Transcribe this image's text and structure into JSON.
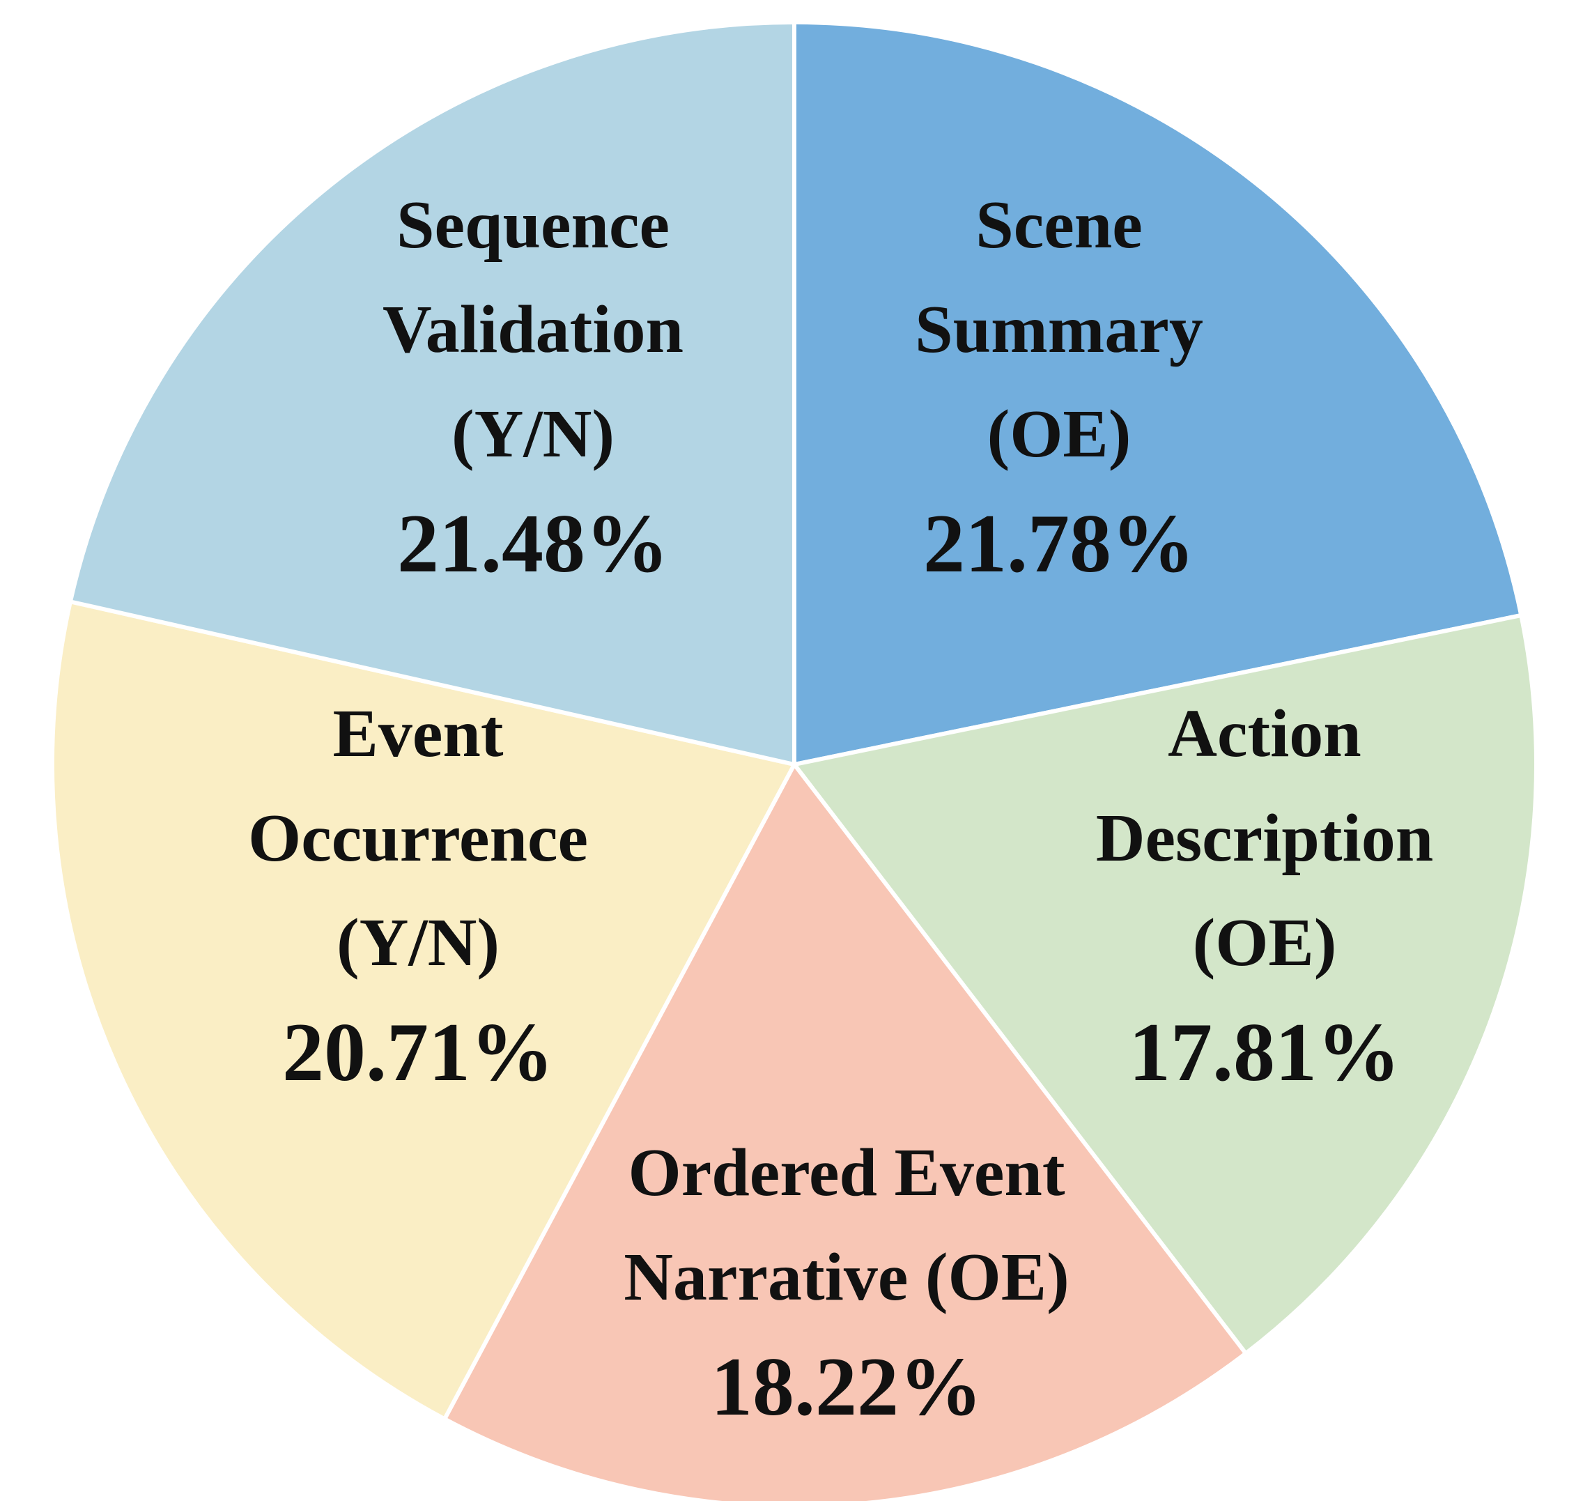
{
  "chart_data": {
    "type": "pie",
    "start_angle_deg": 0,
    "direction": "clockwise",
    "slices": [
      {
        "name": "Scene Summary (OE)",
        "value": 21.78,
        "value_label": "21.78%",
        "label_lines": [
          "Scene",
          "Summary",
          "(OE)"
        ],
        "color": "#72AEDD"
      },
      {
        "name": "Action Description (OE)",
        "value": 17.81,
        "value_label": "17.81%",
        "label_lines": [
          "Action",
          "Description",
          "(OE)"
        ],
        "color": "#D3E6C9"
      },
      {
        "name": "Ordered Event Narrative (OE)",
        "value": 18.22,
        "value_label": "18.22%",
        "label_lines": [
          "Ordered Event",
          "Narrative (OE)"
        ],
        "color": "#F8C6B5"
      },
      {
        "name": "Event Occurrence (Y/N)",
        "value": 20.71,
        "value_label": "20.71%",
        "label_lines": [
          "Event",
          "Occurrence",
          "(Y/N)"
        ],
        "color": "#FAEEC5"
      },
      {
        "name": "Sequence Validation (Y/N)",
        "value": 21.48,
        "value_label": "21.48%",
        "label_lines": [
          "Sequence",
          "Validation",
          "(Y/N)"
        ],
        "color": "#B3D5E4"
      }
    ]
  }
}
